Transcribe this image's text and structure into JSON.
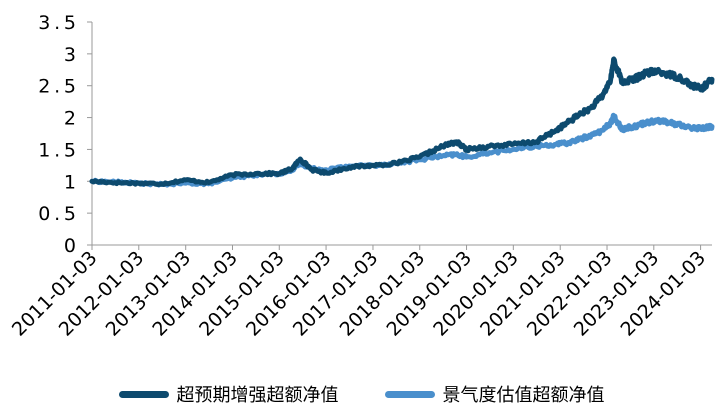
{
  "chart_data": {
    "type": "line",
    "title": "",
    "xlabel": "",
    "ylabel": "",
    "ylim": [
      0,
      3.5
    ],
    "yticks": [
      "0",
      "0.5",
      "1",
      "1.5",
      "2",
      "2.5",
      "3",
      "3.5"
    ],
    "xticks": [
      "2011-01-03",
      "2012-01-03",
      "2013-01-03",
      "2014-01-03",
      "2015-01-03",
      "2016-01-03",
      "2017-01-03",
      "2018-01-03",
      "2019-01-03",
      "2020-01-03",
      "2021-01-03",
      "2022-01-03",
      "2023-01-03",
      "2024-01-03"
    ],
    "grid": false,
    "legend_position": "bottom",
    "series": [
      {
        "name": "超预期增强超额净值",
        "color": "#0d4a6e",
        "points": [
          [
            "2011-01-03",
            1.0
          ],
          [
            "2011-07-01",
            0.98
          ],
          [
            "2012-01-03",
            0.97
          ],
          [
            "2012-07-02",
            0.96
          ],
          [
            "2013-01-04",
            1.02
          ],
          [
            "2013-07-01",
            0.98
          ],
          [
            "2014-01-02",
            1.1
          ],
          [
            "2014-07-01",
            1.12
          ],
          [
            "2015-01-05",
            1.12
          ],
          [
            "2015-04-15",
            1.2
          ],
          [
            "2015-06-15",
            1.35
          ],
          [
            "2015-09-15",
            1.18
          ],
          [
            "2016-01-04",
            1.13
          ],
          [
            "2016-07-01",
            1.22
          ],
          [
            "2017-01-03",
            1.25
          ],
          [
            "2017-07-03",
            1.28
          ],
          [
            "2018-01-02",
            1.38
          ],
          [
            "2018-07-02",
            1.55
          ],
          [
            "2018-10-15",
            1.62
          ],
          [
            "2019-01-02",
            1.5
          ],
          [
            "2019-07-01",
            1.55
          ],
          [
            "2020-01-02",
            1.58
          ],
          [
            "2020-07-01",
            1.62
          ],
          [
            "2020-12-01",
            1.8
          ],
          [
            "2021-03-01",
            1.92
          ],
          [
            "2021-06-01",
            2.05
          ],
          [
            "2021-09-01",
            2.15
          ],
          [
            "2021-12-01",
            2.35
          ],
          [
            "2022-02-01",
            2.6
          ],
          [
            "2022-02-25",
            2.92
          ],
          [
            "2022-05-01",
            2.55
          ],
          [
            "2022-08-01",
            2.6
          ],
          [
            "2022-11-01",
            2.7
          ],
          [
            "2023-02-01",
            2.72
          ],
          [
            "2023-05-01",
            2.68
          ],
          [
            "2023-08-01",
            2.62
          ],
          [
            "2023-11-01",
            2.5
          ],
          [
            "2024-01-15",
            2.45
          ],
          [
            "2024-03-01",
            2.55
          ],
          [
            "2024-04-01",
            2.6
          ]
        ]
      },
      {
        "name": "景气度估值超额净值",
        "color": "#4a8fcc",
        "points": [
          [
            "2011-01-03",
            1.0
          ],
          [
            "2011-07-01",
            0.99
          ],
          [
            "2012-01-03",
            0.97
          ],
          [
            "2012-07-02",
            0.95
          ],
          [
            "2013-01-04",
            0.97
          ],
          [
            "2013-07-01",
            0.96
          ],
          [
            "2014-01-02",
            1.05
          ],
          [
            "2014-07-01",
            1.1
          ],
          [
            "2015-01-05",
            1.12
          ],
          [
            "2015-04-15",
            1.18
          ],
          [
            "2015-06-15",
            1.28
          ],
          [
            "2015-09-15",
            1.2
          ],
          [
            "2016-01-04",
            1.18
          ],
          [
            "2016-07-01",
            1.24
          ],
          [
            "2017-01-03",
            1.25
          ],
          [
            "2017-07-03",
            1.28
          ],
          [
            "2018-01-02",
            1.34
          ],
          [
            "2018-07-02",
            1.4
          ],
          [
            "2018-10-15",
            1.42
          ],
          [
            "2019-01-02",
            1.38
          ],
          [
            "2019-07-01",
            1.45
          ],
          [
            "2020-01-02",
            1.5
          ],
          [
            "2020-07-01",
            1.55
          ],
          [
            "2020-12-01",
            1.58
          ],
          [
            "2021-03-01",
            1.6
          ],
          [
            "2021-06-01",
            1.66
          ],
          [
            "2021-09-01",
            1.72
          ],
          [
            "2021-12-01",
            1.8
          ],
          [
            "2022-02-01",
            1.92
          ],
          [
            "2022-02-25",
            2.02
          ],
          [
            "2022-05-01",
            1.82
          ],
          [
            "2022-08-01",
            1.86
          ],
          [
            "2022-11-01",
            1.92
          ],
          [
            "2023-02-01",
            1.96
          ],
          [
            "2023-05-01",
            1.92
          ],
          [
            "2023-08-01",
            1.88
          ],
          [
            "2023-11-01",
            1.84
          ],
          [
            "2024-01-15",
            1.83
          ],
          [
            "2024-03-01",
            1.85
          ],
          [
            "2024-04-01",
            1.86
          ]
        ]
      }
    ]
  }
}
